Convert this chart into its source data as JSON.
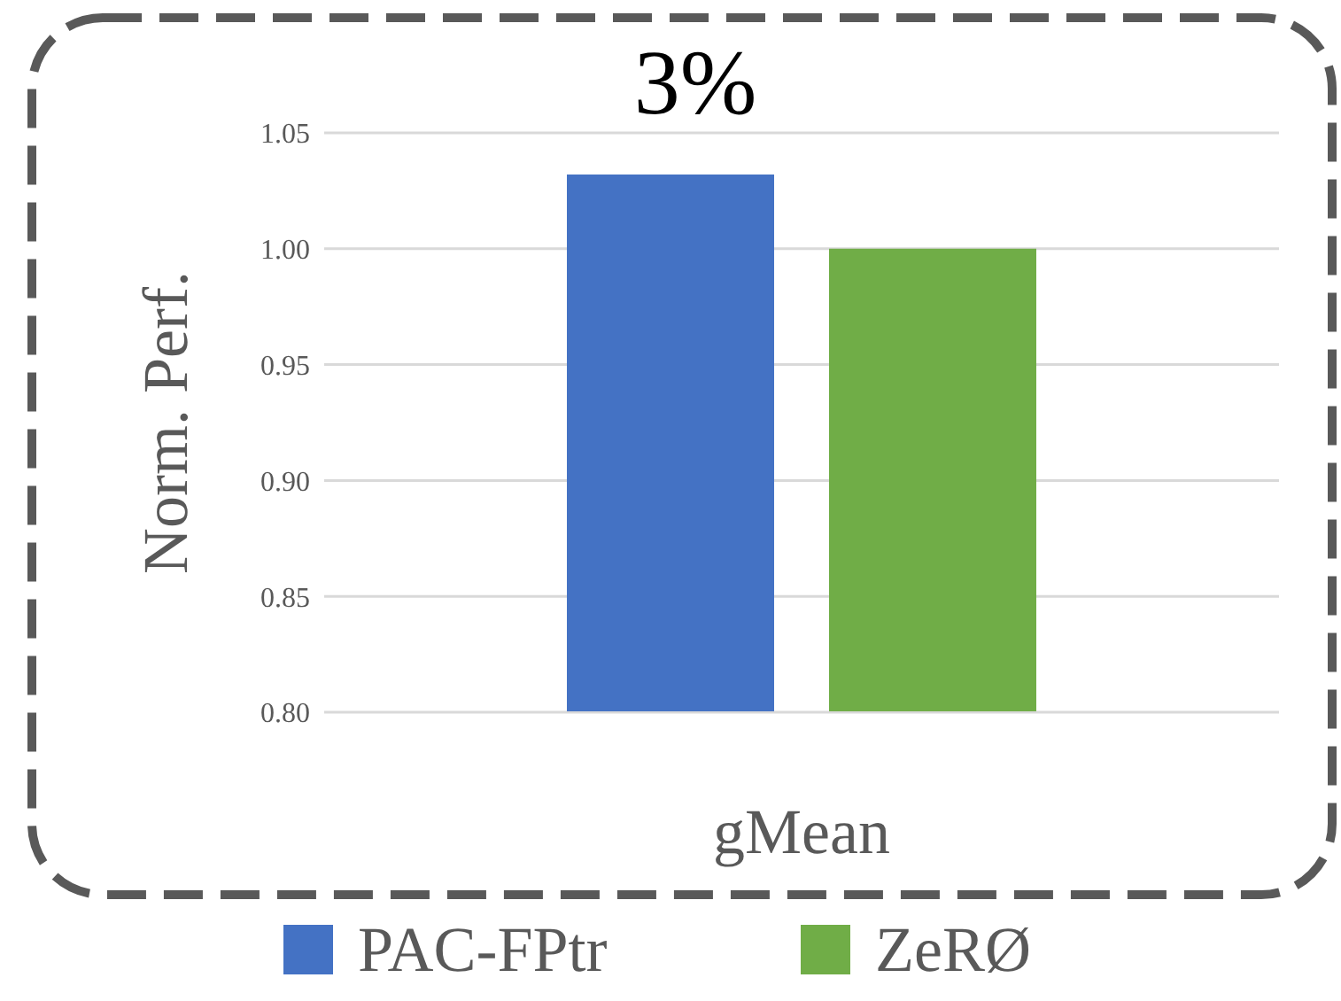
{
  "chart_data": {
    "type": "bar",
    "categories": [
      "gMean"
    ],
    "ylabel": "Norm. Perf.",
    "series": [
      {
        "name": "PAC-FPtr",
        "color": "#4472c4",
        "values": [
          1.032
        ]
      },
      {
        "name": "ZeRØ",
        "color": "#70ad47",
        "values": [
          1.0
        ]
      }
    ],
    "ylim": [
      0.8,
      1.05
    ],
    "yticks": [
      {
        "value": 0.8,
        "label": "0.80"
      },
      0.85,
      {
        "value": 0.9,
        "label": "0.90"
      },
      0.95,
      {
        "value": 1.0,
        "label": "1.00"
      },
      1.05
    ],
    "grid": "y",
    "legend": "bottom",
    "annotations": [
      "3%"
    ]
  }
}
